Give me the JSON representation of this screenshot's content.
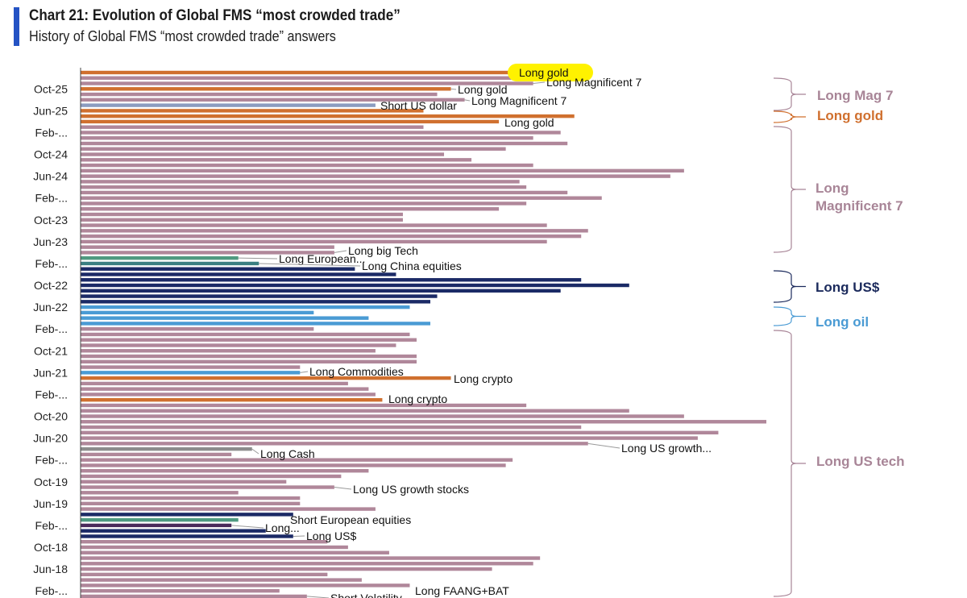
{
  "chart_data": {
    "type": "bar",
    "orientation": "horizontal",
    "title": "Chart 21: Evolution of Global FMS “most crowded trade”",
    "subtitle": "History of Global FMS “most crowded trade” answers",
    "xlim": [
      0,
      100
    ],
    "grid": false,
    "tick_labels": [
      "Oct-25",
      "Jun-25",
      "Feb-...",
      "Oct-24",
      "Jun-24",
      "Feb-...",
      "Oct-23",
      "Jun-23",
      "Feb-...",
      "Oct-22",
      "Jun-22",
      "Feb-...",
      "Oct-21",
      "Jun-21",
      "Feb-...",
      "Oct-20",
      "Jun-20",
      "Feb-...",
      "Oct-19",
      "Jun-19",
      "Feb-...",
      "Oct-18",
      "Jun-18",
      "Feb-..."
    ],
    "values": [
      63,
      67,
      66,
      54,
      52,
      56,
      43,
      50,
      72,
      61,
      50,
      70,
      66,
      71,
      62,
      53,
      57,
      66,
      88,
      86,
      64,
      65,
      71,
      76,
      65,
      61,
      47,
      47,
      68,
      74,
      73,
      68,
      37,
      37,
      23,
      26,
      40,
      46,
      73,
      80,
      70,
      52,
      51,
      48,
      34,
      42,
      51,
      34,
      48,
      49,
      46,
      43,
      49,
      49,
      32,
      32,
      54,
      39,
      42,
      43,
      44,
      65,
      80,
      88,
      100,
      73,
      93,
      90,
      74,
      25,
      22,
      63,
      62,
      42,
      38,
      30,
      37,
      23,
      32,
      32,
      43,
      31,
      23,
      22,
      27,
      31,
      36,
      39,
      45,
      67,
      66,
      60,
      36,
      41,
      48,
      29,
      33
    ],
    "bar_colors": [
      "orange",
      "mauve",
      "mauve",
      "orange",
      "mauve",
      "mauve",
      "bluegray",
      "orange",
      "orange",
      "orange",
      "mauve",
      "mauve",
      "mauve",
      "mauve",
      "mauve",
      "mauve",
      "mauve",
      "mauve",
      "mauve",
      "mauve",
      "mauve",
      "mauve",
      "mauve",
      "mauve",
      "mauve",
      "mauve",
      "mauve",
      "mauve",
      "mauve",
      "mauve",
      "mauve",
      "mauve",
      "mauve",
      "mauve",
      "green",
      "teal",
      "navy",
      "navy",
      "navy",
      "navy",
      "navy",
      "navy",
      "navy",
      "lightblue",
      "lightblue",
      "lightblue",
      "lightblue",
      "mauve",
      "mauve",
      "mauve",
      "mauve",
      "mauve",
      "mauve",
      "mauve",
      "mauve",
      "lightblue",
      "orange",
      "mauve",
      "mauve",
      "mauve",
      "orange",
      "mauve",
      "mauve",
      "mauve",
      "mauve",
      "mauve",
      "mauve",
      "mauve",
      "mauve",
      "gray",
      "mauve",
      "mauve",
      "mauve",
      "mauve",
      "mauve",
      "mauve",
      "mauve",
      "mauve",
      "mauve",
      "mauve",
      "mauve",
      "navy",
      "green",
      "purple",
      "navy",
      "navy",
      "mauve",
      "mauve",
      "mauve",
      "mauve",
      "mauve",
      "mauve",
      "mauve",
      "mauve",
      "mauve",
      "mauve",
      "mauve"
    ],
    "palette": {
      "orange": "#d0702f",
      "mauve": "#b0879a",
      "bluegray": "#8b9cc0",
      "green": "#4f9a80",
      "teal": "#3a7f82",
      "navy": "#1b2a66",
      "lightblue": "#4a9bd4",
      "gray": "#8c8c8c",
      "purple": "#4a2a5a",
      "highlight": "#fff200"
    },
    "annotations": [
      {
        "bar": 0,
        "text": "Long gold",
        "highlight": true
      },
      {
        "bar": 2,
        "text": "Long Magnificent 7"
      },
      {
        "bar": 3,
        "text": "Long gold"
      },
      {
        "bar": 5,
        "text": "Long Magnificent 7"
      },
      {
        "bar": 6,
        "text": "Short US dollar"
      },
      {
        "bar": 9,
        "text": "Long gold"
      },
      {
        "bar": 33,
        "text": "Long big Tech"
      },
      {
        "bar": 34,
        "text": "Long European..."
      },
      {
        "bar": 35,
        "text": "Long China equities"
      },
      {
        "bar": 55,
        "text": "Long Commodities"
      },
      {
        "bar": 56,
        "text": "Long crypto"
      },
      {
        "bar": 60,
        "text": "Long crypto"
      },
      {
        "bar": 68,
        "text": "Long US growth..."
      },
      {
        "bar": 69,
        "text": "Long Cash"
      },
      {
        "bar": 76,
        "text": "Long US growth stocks"
      },
      {
        "bar": 81,
        "text": "Short European equities"
      },
      {
        "bar": 83,
        "text": "Long..."
      },
      {
        "bar": 85,
        "text": "Long US$"
      },
      {
        "bar": 94,
        "text": "Long FAANG+BAT"
      },
      {
        "bar": 96,
        "text": "Short Volatility"
      }
    ],
    "regimes": [
      {
        "label": "Long Mag 7",
        "color": "#a88597"
      },
      {
        "label": "Long gold",
        "color": "#d0702f"
      },
      {
        "label": "Long Magnificent 7",
        "color": "#a88597"
      },
      {
        "label": "Long US$",
        "color": "#1b2a5c"
      },
      {
        "label": "Long oil",
        "color": "#4a9bd4"
      },
      {
        "label": "Long US tech",
        "color": "#a88597"
      }
    ]
  }
}
